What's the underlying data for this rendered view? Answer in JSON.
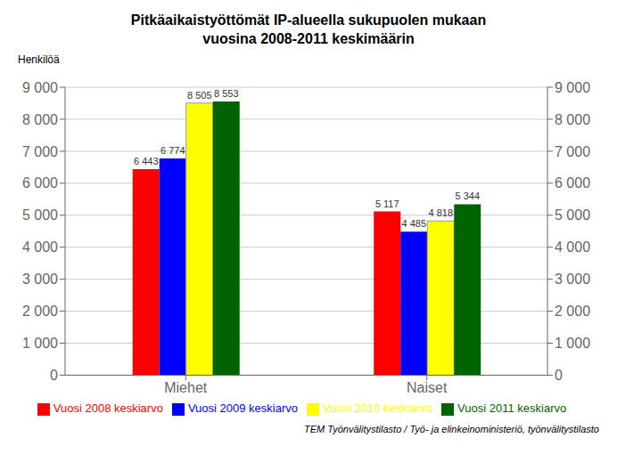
{
  "chart_data": {
    "type": "bar",
    "title": "Pitkäaikaistyöttömät IP-alueella sukupuolen mukaan",
    "subtitle": "vuosina 2008-2011 keskimäärin",
    "y_label": "Henkilöä",
    "annotations": [
      "TEM Työnvälitystilasto / Työ- ja elinkeinoministeriö, työnvälitystilasto"
    ],
    "categories": [
      "Miehet",
      "Naiset"
    ],
    "series": [
      {
        "name": "Vuosi 2008 keskiarvo",
        "color": "#ff0000",
        "values": [
          6443,
          5117
        ],
        "value_labels": [
          "6 443",
          "5 117"
        ]
      },
      {
        "name": "Vuosi 2009 keskiarvo",
        "color": "#0000ff",
        "values": [
          6774,
          4485
        ],
        "value_labels": [
          "6 774",
          "4 485"
        ]
      },
      {
        "name": "Vuosi 2010 keskiarvo",
        "color": "#ffff00",
        "values": [
          8505,
          4818
        ],
        "value_labels": [
          "8 505",
          "4 818"
        ]
      },
      {
        "name": "Vuosi 2011 keskiarvo",
        "color": "#006400",
        "values": [
          8553,
          5344
        ],
        "value_labels": [
          "8 553",
          "5 344"
        ]
      }
    ],
    "ylim": [
      0,
      9000
    ],
    "yticks": [
      0,
      {
        "value": 1000,
        "label": "1 000"
      },
      {
        "value": 2000,
        "label": "2 000"
      },
      {
        "value": 3000,
        "label": "3 000"
      },
      {
        "value": 4000,
        "label": "4 000"
      },
      {
        "value": 5000,
        "label": "5 000"
      },
      {
        "value": 6000,
        "label": "6 000"
      },
      {
        "value": 7000,
        "label": "7 000"
      },
      {
        "value": 8000,
        "label": "8 000"
      },
      {
        "value": 9000,
        "label": "9 000"
      }
    ],
    "y2lim": [
      0,
      9000
    ],
    "y2ticks": [
      0,
      {
        "value": 1000,
        "label": "1 000"
      },
      {
        "value": 2000,
        "label": "2 000"
      },
      {
        "value": 3000,
        "label": "3 000"
      },
      {
        "value": 4000,
        "label": "4 000"
      },
      {
        "value": 5000,
        "label": "5 000"
      },
      {
        "value": 6000,
        "label": "6 000"
      },
      {
        "value": 7000,
        "label": "7 000"
      },
      {
        "value": 8000,
        "label": "8 000"
      },
      {
        "value": 9000,
        "label": "9 000"
      }
    ],
    "grid": true,
    "legend": "bottom",
    "data_labels": true
  }
}
